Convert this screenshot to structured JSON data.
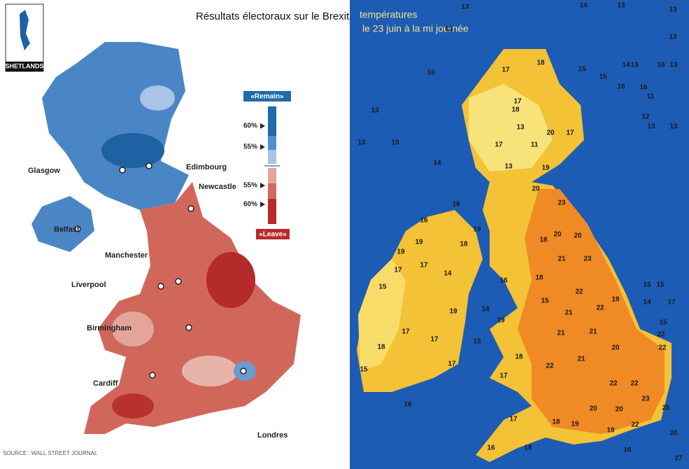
{
  "left": {
    "title": "Résultats électoraux sur le Brexit",
    "shetlands": "SHETLANDS",
    "legend": {
      "remain": "«Remain»",
      "leave": "«Leave»",
      "ticks": [
        "60%",
        "55%",
        "55%",
        "60%"
      ]
    },
    "cities": [
      "Glasgow",
      "Edimbourg",
      "Newcastle",
      "Belfast",
      "Manchester",
      "Liverpool",
      "Birmingham",
      "Cardiff",
      "Londres"
    ],
    "source": "SOURCE : WALL STREET JOURNAL"
  },
  "right": {
    "title": "températures",
    "subtitle": "le 23 juin à la mi journée",
    "temperatures": [
      13,
      15,
      13,
      14,
      16,
      16,
      19,
      16,
      13,
      13,
      14,
      13,
      15,
      15,
      16,
      14,
      13,
      16,
      13,
      13,
      13,
      16,
      11,
      12,
      13,
      13,
      15,
      15,
      17,
      14,
      15,
      22,
      22,
      25,
      20,
      27,
      17,
      18,
      17,
      18,
      13,
      20,
      17,
      11,
      17,
      13,
      19,
      20,
      23,
      20,
      20,
      23,
      21,
      18,
      18,
      22,
      21,
      22,
      19,
      21,
      20,
      21,
      22,
      21,
      22,
      22,
      20,
      19,
      18,
      22,
      17,
      16,
      18,
      16,
      19,
      23,
      20,
      17,
      14,
      15,
      15,
      18,
      17,
      19,
      15,
      17,
      17,
      16,
      19,
      17,
      18,
      19,
      14,
      19,
      18,
      17,
      15,
      16
    ]
  }
}
